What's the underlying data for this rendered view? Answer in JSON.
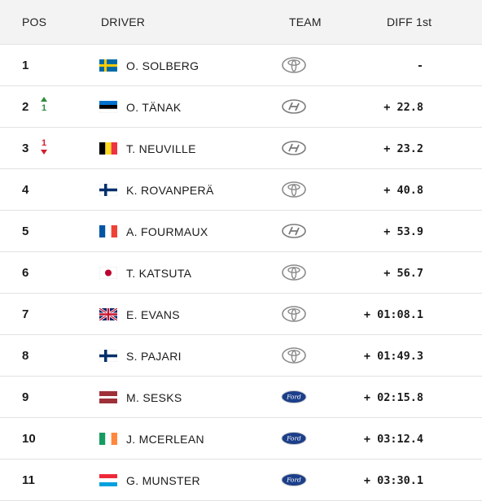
{
  "header": {
    "pos": "POS",
    "driver": "DRIVER",
    "team": "TEAM",
    "diff": "DIFF 1st"
  },
  "rows": [
    {
      "pos": "1",
      "delta": "",
      "dir": "",
      "flag": "sweden",
      "name": "O. SOLBERG",
      "team": "toyota",
      "diff": "-"
    },
    {
      "pos": "2",
      "delta": "1",
      "dir": "up",
      "flag": "estonia",
      "name": "O. TÄNAK",
      "team": "hyundai",
      "diff": "+ 22.8"
    },
    {
      "pos": "3",
      "delta": "1",
      "dir": "down",
      "flag": "belgium",
      "name": "T. NEUVILLE",
      "team": "hyundai",
      "diff": "+ 23.2"
    },
    {
      "pos": "4",
      "delta": "",
      "dir": "",
      "flag": "finland",
      "name": "K. ROVANPERÄ",
      "team": "toyota",
      "diff": "+ 40.8"
    },
    {
      "pos": "5",
      "delta": "",
      "dir": "",
      "flag": "france",
      "name": "A. FOURMAUX",
      "team": "hyundai",
      "diff": "+ 53.9"
    },
    {
      "pos": "6",
      "delta": "",
      "dir": "",
      "flag": "japan",
      "name": "T. KATSUTA",
      "team": "toyota",
      "diff": "+ 56.7"
    },
    {
      "pos": "7",
      "delta": "",
      "dir": "",
      "flag": "uk",
      "name": "E. EVANS",
      "team": "toyota",
      "diff": "+ 01:08.1"
    },
    {
      "pos": "8",
      "delta": "",
      "dir": "",
      "flag": "finland",
      "name": "S. PAJARI",
      "team": "toyota",
      "diff": "+ 01:49.3"
    },
    {
      "pos": "9",
      "delta": "",
      "dir": "",
      "flag": "latvia",
      "name": "M. SESKS",
      "team": "ford",
      "diff": "+ 02:15.8"
    },
    {
      "pos": "10",
      "delta": "",
      "dir": "",
      "flag": "ireland",
      "name": "J. MCERLEAN",
      "team": "ford",
      "diff": "+ 03:12.4"
    },
    {
      "pos": "11",
      "delta": "",
      "dir": "",
      "flag": "luxembourg",
      "name": "G. MUNSTER",
      "team": "ford",
      "diff": "+ 03:30.1"
    }
  ],
  "colors": {
    "up": "#2e8b3d",
    "down": "#d0202e",
    "header_bg": "#f3f3f3",
    "divider": "#e2e2e2"
  }
}
